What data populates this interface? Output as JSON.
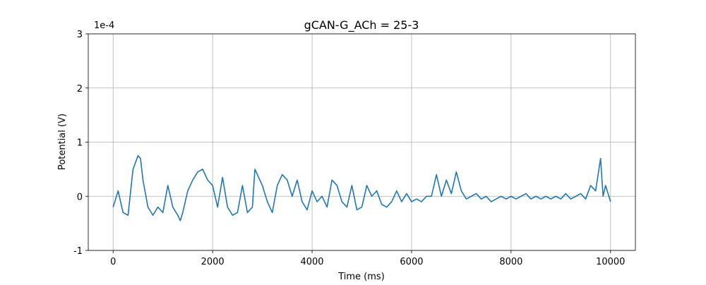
{
  "chart_data": {
    "type": "line",
    "title": "gCAN-G_ACh = 25-3",
    "x_label": "Time (ms)",
    "y_label": "Potential (V)",
    "y_offset_label": "1e-4",
    "x": [
      0,
      100,
      200,
      300,
      400,
      500,
      550,
      600,
      700,
      800,
      900,
      1000,
      1100,
      1200,
      1300,
      1350,
      1400,
      1500,
      1600,
      1700,
      1800,
      1900,
      2000,
      2100,
      2200,
      2300,
      2400,
      2500,
      2600,
      2700,
      2800,
      2850,
      2900,
      3000,
      3100,
      3200,
      3300,
      3400,
      3500,
      3600,
      3700,
      3800,
      3900,
      4000,
      4100,
      4200,
      4300,
      4400,
      4500,
      4600,
      4700,
      4800,
      4900,
      5000,
      5100,
      5200,
      5300,
      5400,
      5500,
      5600,
      5700,
      5800,
      5900,
      6000,
      6100,
      6200,
      6300,
      6400,
      6500,
      6600,
      6700,
      6800,
      6900,
      7000,
      7100,
      7200,
      7300,
      7400,
      7500,
      7600,
      7700,
      7800,
      7900,
      8000,
      8100,
      8200,
      8300,
      8400,
      8500,
      8600,
      8700,
      8800,
      8900,
      9000,
      9100,
      9200,
      9300,
      9400,
      9500,
      9600,
      9700,
      9800,
      9850,
      9900,
      10000
    ],
    "series": [
      {
        "name": "Potential",
        "color": "#1f77b4",
        "values": [
          -0.2,
          0.1,
          -0.3,
          -0.35,
          0.5,
          0.75,
          0.7,
          0.3,
          -0.2,
          -0.35,
          -0.2,
          -0.3,
          0.2,
          -0.2,
          -0.35,
          -0.45,
          -0.3,
          0.1,
          0.3,
          0.45,
          0.5,
          0.3,
          0.2,
          -0.2,
          0.35,
          -0.2,
          -0.35,
          -0.3,
          0.2,
          -0.3,
          -0.2,
          0.5,
          0.4,
          0.2,
          -0.1,
          -0.3,
          0.2,
          0.4,
          0.3,
          0.0,
          0.3,
          -0.1,
          -0.25,
          0.1,
          -0.1,
          0.0,
          -0.2,
          0.3,
          0.2,
          -0.1,
          -0.2,
          0.2,
          -0.25,
          -0.2,
          0.2,
          0.0,
          0.1,
          -0.15,
          -0.2,
          -0.1,
          0.1,
          -0.1,
          0.05,
          -0.1,
          -0.05,
          -0.1,
          0.0,
          0.0,
          0.4,
          0.0,
          0.3,
          0.05,
          0.45,
          0.1,
          -0.05,
          0.0,
          0.05,
          -0.05,
          0.0,
          -0.1,
          -0.05,
          0.0,
          -0.05,
          0.0,
          -0.05,
          0.0,
          0.05,
          -0.05,
          0.0,
          -0.05,
          0.0,
          -0.05,
          0.0,
          -0.05,
          0.05,
          -0.05,
          0.0,
          0.05,
          -0.05,
          0.2,
          0.1,
          0.7,
          0.0,
          0.2,
          -0.1
        ]
      }
    ],
    "xlim": [
      -500,
      10500
    ],
    "ylim": [
      -1,
      3
    ],
    "xticks": [
      0,
      2000,
      4000,
      6000,
      8000,
      10000
    ],
    "yticks": [
      -1,
      0,
      1,
      2,
      3
    ],
    "grid": true
  }
}
